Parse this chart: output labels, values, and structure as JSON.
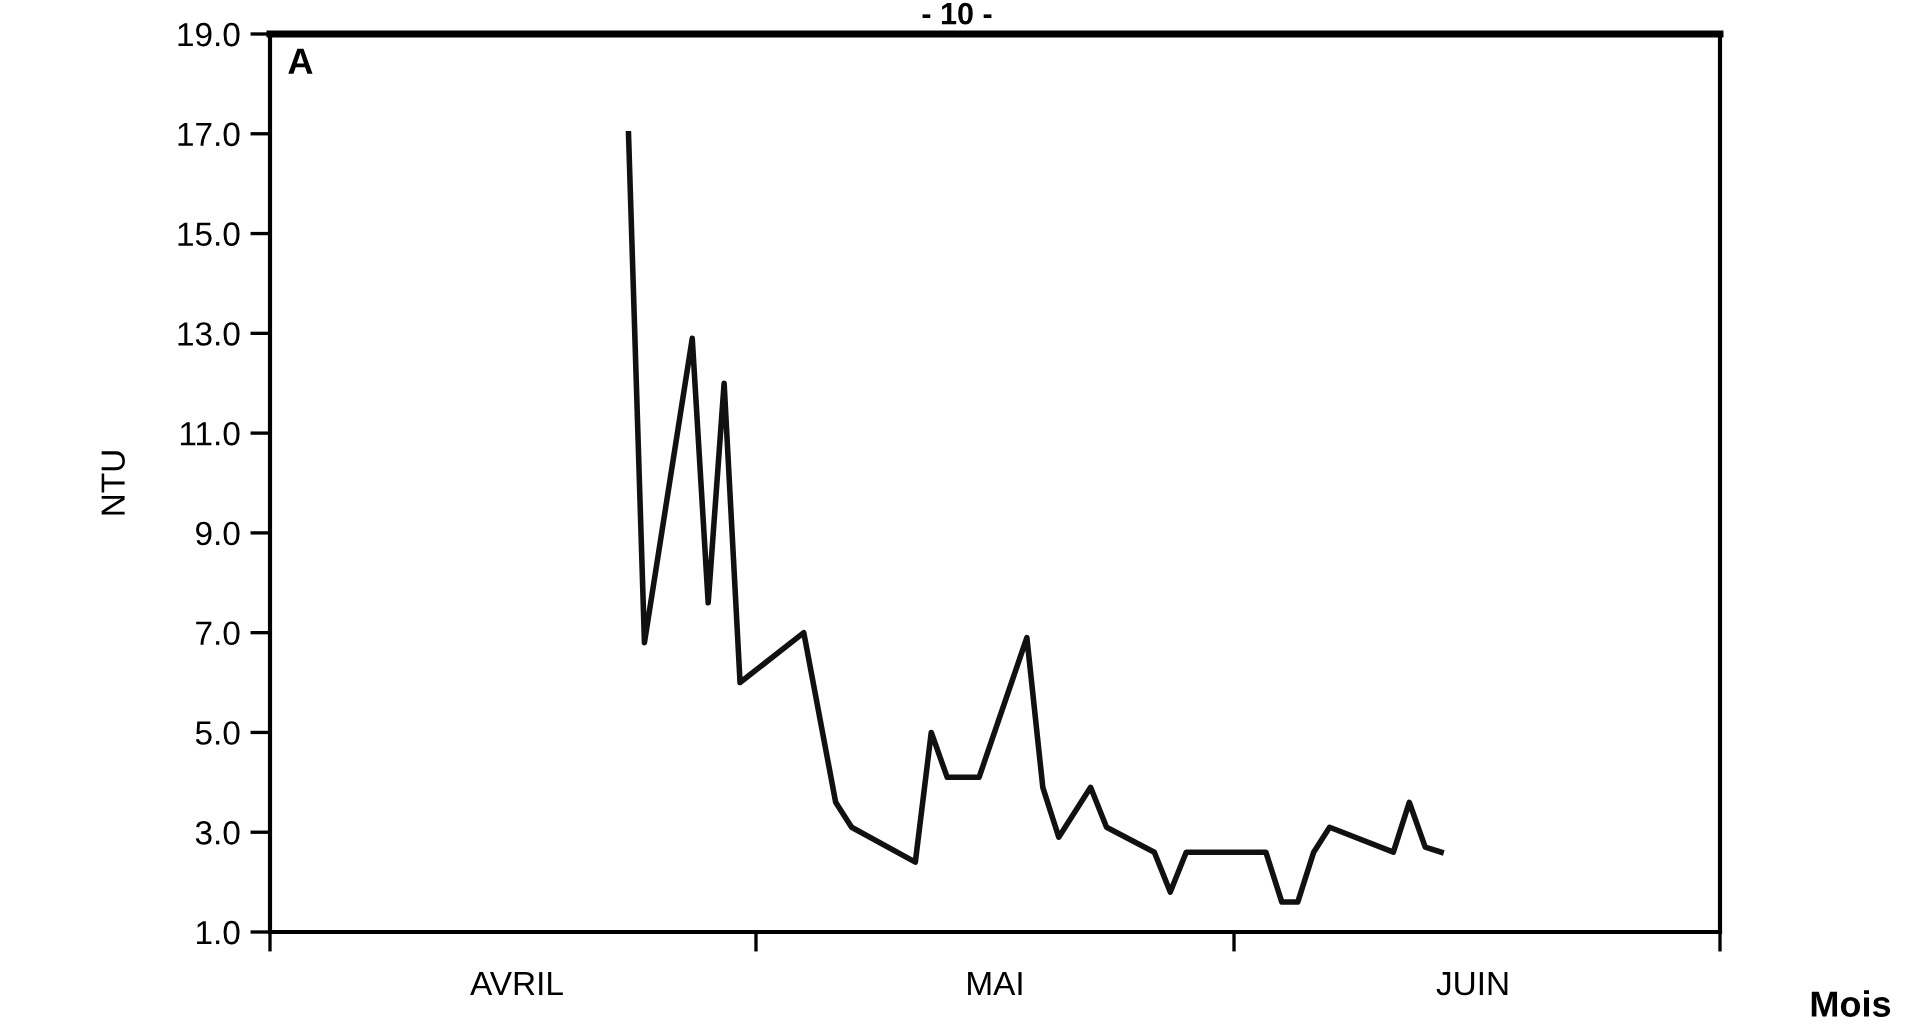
{
  "chart_data": {
    "type": "line",
    "ylabel": "NTU",
    "xlabel": "Mois",
    "annotations": [
      "- 10 -",
      "A"
    ],
    "categories": [
      null,
      null,
      null,
      null,
      null,
      null,
      null,
      null,
      null,
      null,
      null,
      null,
      null,
      null,
      null,
      "AVRIL",
      null,
      null,
      null,
      null,
      null,
      null,
      null,
      null,
      null,
      null,
      null,
      null,
      null,
      null,
      null,
      null,
      null,
      null,
      null,
      null,
      null,
      null,
      null,
      null,
      null,
      null,
      null,
      null,
      null,
      "MAI",
      null,
      null,
      null,
      null,
      null,
      null,
      null,
      null,
      null,
      null,
      null,
      null,
      null,
      null,
      null,
      null,
      null,
      null,
      null,
      null,
      null,
      null,
      null,
      null,
      null,
      null,
      null,
      null,
      null,
      "JUIN",
      null,
      null,
      null,
      null,
      null,
      null,
      null,
      null,
      null,
      null,
      null,
      null,
      null,
      null,
      null
    ],
    "series": [
      {
        "color": "#111111",
        "values": [
          null,
          null,
          null,
          null,
          null,
          null,
          null,
          null,
          null,
          null,
          null,
          null,
          null,
          null,
          null,
          null,
          null,
          null,
          null,
          null,
          null,
          null,
          17.0,
          6.8,
          null,
          null,
          12.9,
          7.6,
          12.0,
          6.0,
          null,
          null,
          null,
          7.0,
          null,
          3.6,
          3.1,
          null,
          null,
          null,
          2.4,
          5.0,
          4.1,
          null,
          4.1,
          null,
          null,
          6.9,
          3.9,
          2.9,
          null,
          3.9,
          3.1,
          null,
          null,
          2.6,
          1.8,
          2.6,
          null,
          null,
          null,
          null,
          2.6,
          1.6,
          1.6,
          2.6,
          3.1,
          null,
          null,
          null,
          2.6,
          3.6,
          2.7,
          2.6,
          null,
          null,
          null,
          null,
          null,
          null,
          null,
          null,
          null,
          null,
          null,
          null,
          null,
          null,
          null,
          null,
          null
        ]
      }
    ],
    "ylim": [
      1,
      19
    ],
    "yticks": [
      {
        "value": 1,
        "label": "1.0"
      },
      {
        "value": 3,
        "label": "3.0"
      },
      {
        "value": 5,
        "label": "5.0"
      },
      {
        "value": 7,
        "label": "7.0"
      },
      {
        "value": 9,
        "label": "9.0"
      },
      {
        "value": 11,
        "label": "11.0"
      },
      {
        "value": 13,
        "label": "13.0"
      },
      {
        "value": 15,
        "label": "15.0"
      },
      {
        "value": 17,
        "label": "17.0"
      },
      {
        "value": 19,
        "label": "19.0"
      }
    ],
    "grid": false,
    "legend": false,
    "marker": "none",
    "line_style": "solid"
  }
}
